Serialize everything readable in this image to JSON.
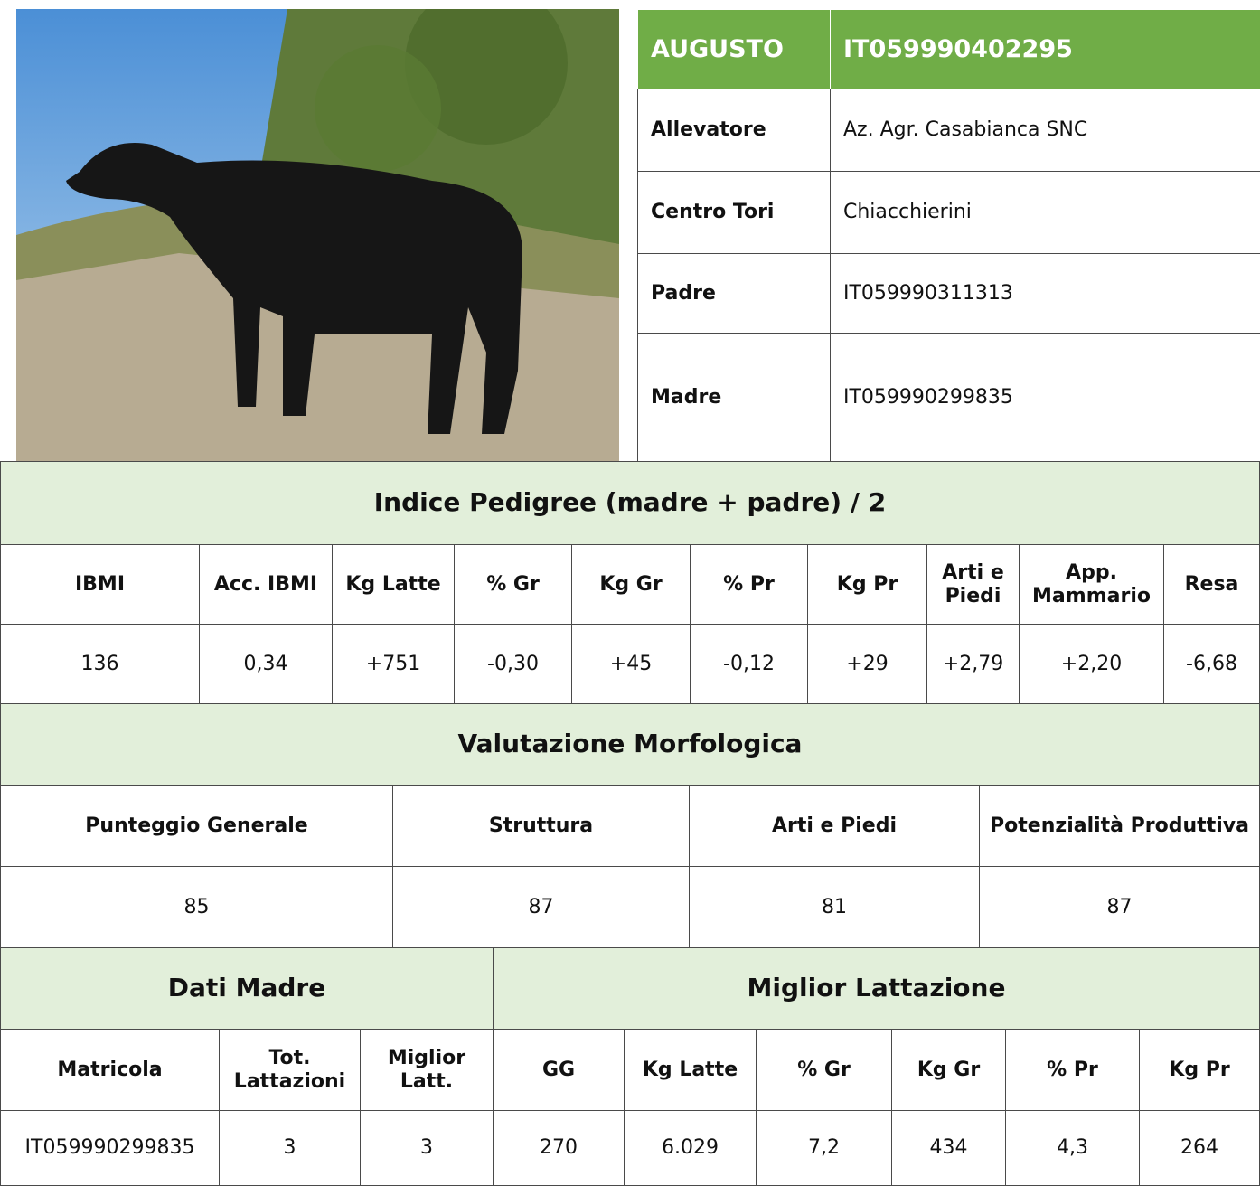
{
  "header": {
    "name": "AUGUSTO",
    "id": "IT059990402295"
  },
  "info": {
    "rows": [
      [
        "Allevatore",
        "Az. Agr. Casabianca SNC"
      ],
      [
        "Centro Tori",
        "Chiacchierini"
      ],
      [
        "Padre",
        "IT059990311313"
      ],
      [
        "Madre",
        "IT059990299835"
      ]
    ]
  },
  "pedigree": {
    "title": "Indice Pedigree (madre + padre) / 2",
    "columns": [
      "IBMI",
      "Acc. IBMI",
      "Kg Latte",
      "% Gr",
      "Kg Gr",
      "% Pr",
      "Kg Pr",
      "Arti e Piedi",
      "App. Mammario",
      "Resa"
    ],
    "values": [
      "136",
      "0,34",
      "+751",
      "-0,30",
      "+45",
      "-0,12",
      "+29",
      "+2,79",
      "+2,20",
      "-6,68"
    ]
  },
  "morfologia": {
    "title": "Valutazione Morfologica",
    "columns": [
      "Punteggio Generale",
      "Struttura",
      "Arti e Piedi",
      "Potenzialità Produttiva"
    ],
    "values": [
      "85",
      "87",
      "81",
      "87"
    ]
  },
  "madre": {
    "title": "Dati Madre",
    "columns": [
      "Matricola",
      "Tot. Lattazioni",
      "Miglior Latt."
    ],
    "values": [
      "IT059990299835",
      "3",
      "3"
    ]
  },
  "lattazione": {
    "title": "Miglior Lattazione",
    "columns": [
      "GG",
      "Kg Latte",
      "% Gr",
      "Kg Gr",
      "% Pr",
      "Kg Pr"
    ],
    "values": [
      "270",
      "6.029",
      "7,2",
      "434",
      "4,3",
      "264"
    ]
  }
}
